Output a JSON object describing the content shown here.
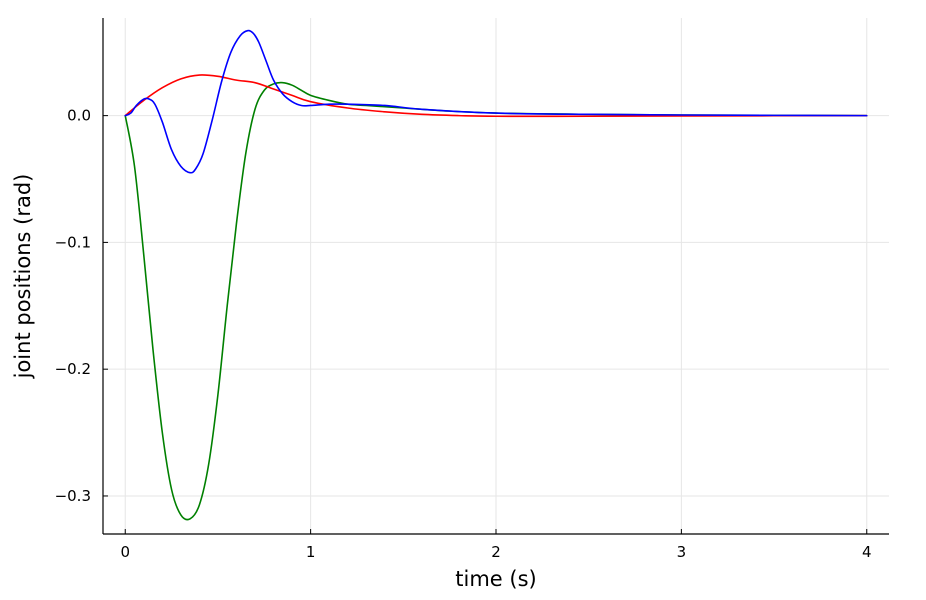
{
  "chart_data": {
    "type": "line",
    "title": "",
    "xlabel": "time (s)",
    "ylabel": "joint positions (rad)",
    "xlim": [
      -0.12,
      4.12
    ],
    "ylim": [
      -0.33,
      0.077
    ],
    "xticks": [
      0,
      1,
      2,
      3,
      4
    ],
    "xtick_labels": [
      "0",
      "1",
      "2",
      "3",
      "4"
    ],
    "yticks": [
      -0.3,
      -0.2,
      -0.1,
      0.0
    ],
    "ytick_labels": [
      "−0.3",
      "−0.2",
      "−0.1",
      "0.0"
    ],
    "grid": true,
    "legend": "none",
    "series": [
      {
        "color": "#008000",
        "x": [
          0,
          0.05,
          0.1,
          0.15,
          0.2,
          0.25,
          0.3,
          0.35,
          0.4,
          0.45,
          0.5,
          0.55,
          0.6,
          0.65,
          0.7,
          0.75,
          0.8,
          0.85,
          0.9,
          0.95,
          1.0,
          1.1,
          1.2,
          1.3,
          1.5,
          1.7,
          2.0,
          2.5,
          3.0,
          3.5,
          4.0
        ],
        "y": [
          0,
          -0.04,
          -0.11,
          -0.185,
          -0.25,
          -0.295,
          -0.315,
          -0.318,
          -0.307,
          -0.275,
          -0.22,
          -0.15,
          -0.085,
          -0.03,
          0.005,
          0.02,
          0.025,
          0.026,
          0.024,
          0.02,
          0.016,
          0.012,
          0.009,
          0.008,
          0.006,
          0.004,
          0.002,
          0.001,
          0.0005,
          0.0002,
          0.0
        ]
      },
      {
        "color": "#ff0000",
        "x": [
          0,
          0.1,
          0.2,
          0.3,
          0.4,
          0.5,
          0.6,
          0.7,
          0.8,
          0.9,
          1.0,
          1.2,
          1.4,
          1.6,
          1.8,
          2.0,
          2.5,
          3.0,
          3.5,
          4.0
        ],
        "y": [
          0,
          0.012,
          0.022,
          0.029,
          0.032,
          0.031,
          0.028,
          0.026,
          0.021,
          0.016,
          0.011,
          0.006,
          0.003,
          0.001,
          0.0,
          -0.0005,
          -0.0005,
          -0.0003,
          -0.0001,
          0.0
        ]
      },
      {
        "color": "#0000ff",
        "x": [
          0,
          0.03,
          0.06,
          0.1,
          0.13,
          0.16,
          0.2,
          0.25,
          0.3,
          0.35,
          0.38,
          0.42,
          0.47,
          0.52,
          0.57,
          0.62,
          0.66,
          0.69,
          0.72,
          0.76,
          0.8,
          0.85,
          0.9,
          0.95,
          1.0,
          1.1,
          1.2,
          1.4,
          1.6,
          2.0,
          2.5,
          3.0,
          3.5,
          4.0
        ],
        "y": [
          0,
          0.002,
          0.008,
          0.013,
          0.013,
          0.009,
          -0.005,
          -0.027,
          -0.04,
          -0.045,
          -0.042,
          -0.03,
          -0.003,
          0.027,
          0.05,
          0.063,
          0.067,
          0.065,
          0.058,
          0.043,
          0.028,
          0.017,
          0.011,
          0.008,
          0.008,
          0.009,
          0.009,
          0.008,
          0.005,
          0.002,
          0.001,
          0.0005,
          0.0002,
          0.0
        ]
      }
    ]
  }
}
